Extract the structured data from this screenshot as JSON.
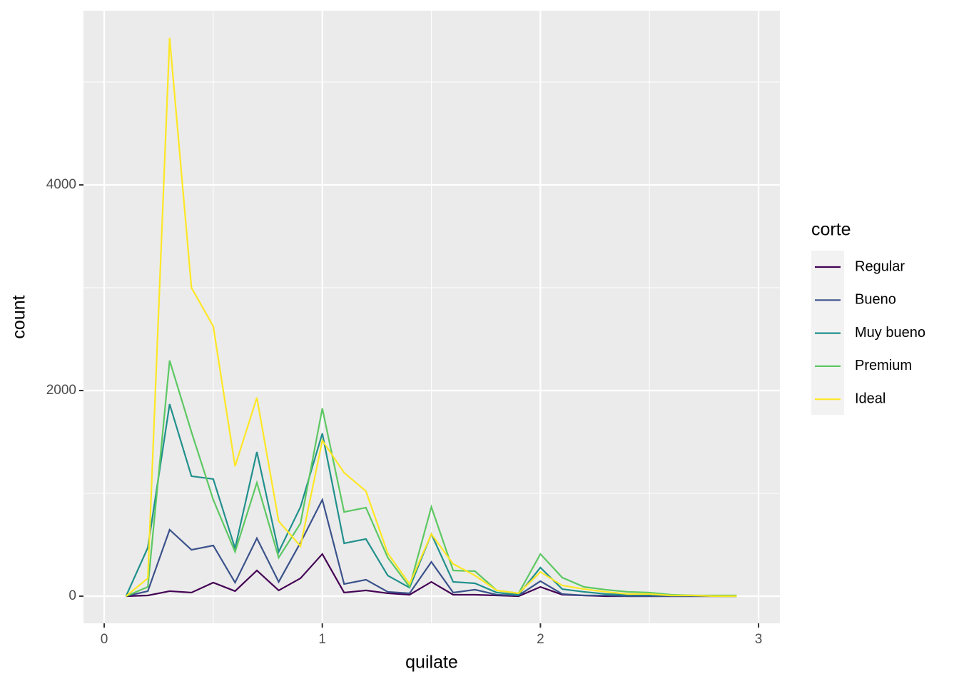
{
  "chart_data": {
    "type": "line",
    "x_label": "quilate",
    "y_label": "count",
    "legend_title": "corte",
    "legend_position": "right",
    "x": [
      0.1,
      0.2,
      0.3,
      0.4,
      0.5,
      0.6,
      0.7,
      0.8,
      0.9,
      1.0,
      1.1,
      1.2,
      1.3,
      1.4,
      1.5,
      1.6,
      1.7,
      1.8,
      1.9,
      2.0,
      2.1,
      2.2,
      2.3,
      2.4,
      2.5,
      2.6,
      2.7,
      2.8,
      2.9
    ],
    "series": [
      {
        "name": "Regular",
        "color": "#440154",
        "values": [
          0,
          7,
          49,
          35,
          132,
          49,
          250,
          56,
          174,
          410,
          35,
          56,
          28,
          14,
          139,
          14,
          14,
          7,
          0,
          90,
          14,
          7,
          0,
          0,
          0,
          0,
          0,
          0,
          0
        ]
      },
      {
        "name": "Bueno",
        "color": "#3b528b",
        "values": [
          0,
          49,
          646,
          451,
          493,
          132,
          563,
          139,
          521,
          938,
          118,
          160,
          42,
          28,
          333,
          35,
          63,
          14,
          7,
          146,
          21,
          7,
          7,
          0,
          0,
          0,
          0,
          0,
          0
        ]
      },
      {
        "name": "Muy bueno",
        "color": "#21908c",
        "values": [
          0,
          472,
          1868,
          1167,
          1139,
          465,
          1403,
          431,
          868,
          1583,
          514,
          556,
          201,
          83,
          604,
          139,
          125,
          35,
          14,
          278,
          69,
          42,
          21,
          14,
          14,
          7,
          7,
          0,
          0
        ]
      },
      {
        "name": "Premium",
        "color": "#5dc863",
        "values": [
          0,
          90,
          2292,
          1597,
          938,
          431,
          1104,
          375,
          708,
          1826,
          819,
          861,
          375,
          90,
          868,
          250,
          243,
          56,
          28,
          410,
          181,
          90,
          63,
          42,
          35,
          14,
          7,
          7,
          7
        ]
      },
      {
        "name": "Ideal",
        "color": "#fde725",
        "values": [
          0,
          174,
          5431,
          3000,
          2625,
          1264,
          1931,
          729,
          486,
          1514,
          1201,
          1021,
          417,
          118,
          604,
          313,
          201,
          56,
          28,
          236,
          104,
          69,
          42,
          21,
          21,
          7,
          7,
          0,
          0
        ]
      }
    ],
    "xlim": [
      -0.095,
      3.098
    ],
    "ylim": [
      -264,
      5694
    ],
    "xticks": [
      0,
      1,
      2,
      3
    ],
    "yticks": [
      0,
      2000,
      4000
    ],
    "x_minor_grid": [
      0.5,
      1.5,
      2.5
    ],
    "y_minor_grid": [
      1000,
      3000,
      5000
    ],
    "grid": true,
    "panel_color": "#ebebeb"
  }
}
